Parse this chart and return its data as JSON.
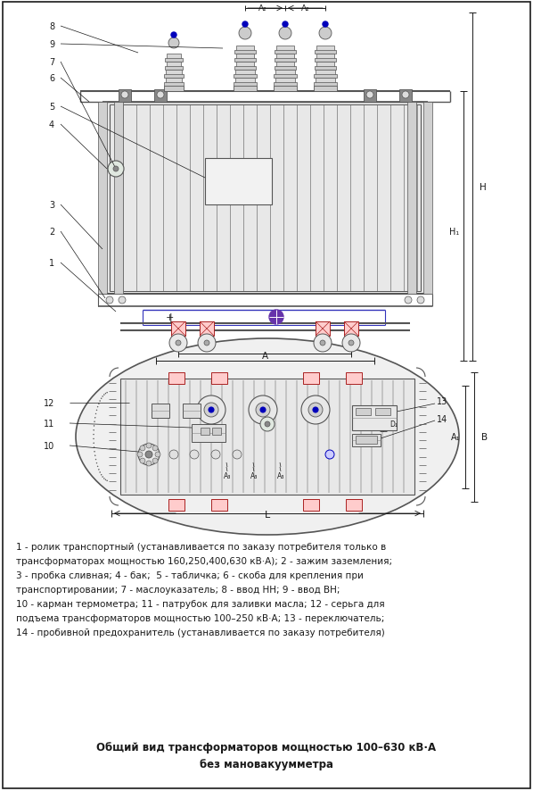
{
  "figure_width": 5.98,
  "figure_height": 8.87,
  "dpi": 100,
  "bg_color": "#ffffff",
  "bc": "#1a1a1a",
  "dc": "#555555",
  "dc2": "#888888",
  "rc": "#aa2222",
  "blc": "#0000bb",
  "purplec": "#6633aa",
  "lw": 0.7,
  "title_line1": "Общий вид трансформаторов мощностью 100–630 кВ·А",
  "title_line2": "без мановакуумметра",
  "desc_line1": "1 - ролик транспортный (устанавливается по заказу потребителя только в",
  "desc_line2": "трансформаторах мощностью 160,250,400,630 кВ·А); 2 - зажим заземления;",
  "desc_line3": "3 - пробка сливная; 4 - бак;  5 - табличка; 6 - скоба для крепления при",
  "desc_line4": "транспортировании; 7 - маслоуказатель; 8 - ввод НН; 9 - ввод ВН;",
  "desc_line5": "10 - карман термометра; 11 - патрубок для заливки масла; 12 - серьга для",
  "desc_line6": "подъема трансформаторов мощностью 100–250 кВ·А; 13 - переключатель;",
  "desc_line7": "14 - пробивной предохранитель (устанавливается по заказу потребителя)"
}
